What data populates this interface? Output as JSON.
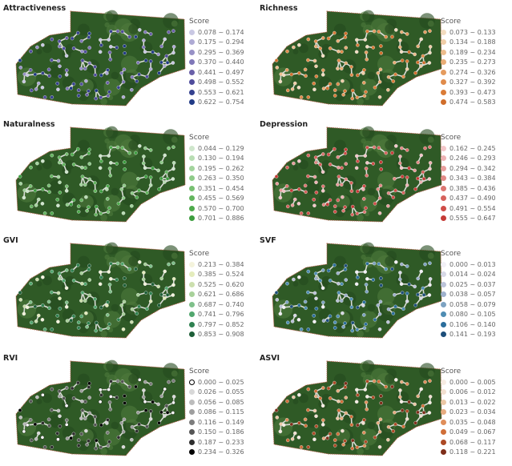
{
  "legend_header": "Score",
  "panels": [
    {
      "title": "Attractiveness",
      "classes": [
        "0.078 ~ 0.174",
        "0.175 ~ 0.294",
        "0.295 ~ 0.369",
        "0.370 ~ 0.440",
        "0.441 ~ 0.497",
        "0.498 ~ 0.552",
        "0.553 ~ 0.621",
        "0.622 ~ 0.754"
      ],
      "colors": [
        "#c9c8e3",
        "#aeaad4",
        "#9791c6",
        "#7f77b8",
        "#6a60a9",
        "#4f4c9c",
        "#35418f",
        "#203a86"
      ]
    },
    {
      "title": "Richness",
      "classes": [
        "0.073 ~ 0.133",
        "0.134 ~ 0.188",
        "0.189 ~ 0.234",
        "0.235 ~ 0.273",
        "0.274 ~ 0.326",
        "0.327 ~ 0.392",
        "0.393 ~ 0.473",
        "0.474 ~ 0.583"
      ],
      "colors": [
        "#f3dcc0",
        "#f0cda7",
        "#edbd8d",
        "#e9ad76",
        "#e59c5f",
        "#e08c4b",
        "#da7c38",
        "#d06e2b"
      ]
    },
    {
      "title": "Naturalness",
      "classes": [
        "0.044 ~ 0.129",
        "0.130 ~ 0.194",
        "0.195 ~ 0.262",
        "0.263 ~ 0.350",
        "0.351 ~ 0.454",
        "0.455 ~ 0.569",
        "0.570 ~ 0.700",
        "0.701 ~ 0.886"
      ],
      "colors": [
        "#cfe6cc",
        "#b8ddb3",
        "#a3d49d",
        "#8ecb88",
        "#78c072",
        "#63b55e",
        "#4eaa4c",
        "#3c9d3e"
      ]
    },
    {
      "title": "Depression",
      "classes": [
        "0.162 ~ 0.245",
        "0.246 ~ 0.293",
        "0.294 ~ 0.342",
        "0.343 ~ 0.384",
        "0.385 ~ 0.436",
        "0.437 ~ 0.490",
        "0.491 ~ 0.554",
        "0.555 ~ 0.647"
      ],
      "colors": [
        "#f3c6c8",
        "#eeb2b3",
        "#e99e9c",
        "#e38a86",
        "#dd7671",
        "#d6625c",
        "#cf4d48",
        "#c53a36"
      ]
    },
    {
      "title": "GVI",
      "classes": [
        "0.213 ~ 0.384",
        "0.385 ~ 0.524",
        "0.525 ~ 0.620",
        "0.621 ~ 0.686",
        "0.687 ~ 0.740",
        "0.741 ~ 0.796",
        "0.797 ~ 0.852",
        "0.853 ~ 0.908"
      ],
      "colors": [
        "#f4f3dc",
        "#e4ecbc",
        "#ccdfae",
        "#a8d19a",
        "#7fc08a",
        "#52a76e",
        "#2f8150",
        "#1d5e37"
      ]
    },
    {
      "title": "SVF",
      "classes": [
        "0.000 ~ 0.013",
        "0.014 ~ 0.024",
        "0.025 ~ 0.037",
        "0.038 ~ 0.057",
        "0.058 ~ 0.079",
        "0.080 ~ 0.105",
        "0.106 ~ 0.140",
        "0.141 ~ 0.193"
      ],
      "colors": [
        "#f2f0f6",
        "#d7d8e6",
        "#bcc3d9",
        "#9fb1cd",
        "#7ea3c2",
        "#4f8db3",
        "#2b6e9c",
        "#1d4e7a"
      ]
    },
    {
      "title": "RVI",
      "classes": [
        "0.000 ~ 0.025",
        "0.026 ~ 0.055",
        "0.056 ~ 0.085",
        "0.086 ~ 0.115",
        "0.116 ~ 0.149",
        "0.150 ~ 0.186",
        "0.187 ~ 0.233",
        "0.234 ~ 0.326"
      ],
      "colors": [
        "#ffffff",
        "#d8d8d8",
        "#bcbcbc",
        "#9e9e9e",
        "#7c7c7c",
        "#555555",
        "#2e2e2e",
        "#000000"
      ]
    },
    {
      "title": "ASVI",
      "classes": [
        "0.000 ~ 0.005",
        "0.006 ~ 0.012",
        "0.013 ~ 0.022",
        "0.023 ~ 0.034",
        "0.035 ~ 0.048",
        "0.049 ~ 0.067",
        "0.068 ~ 0.117",
        "0.118 ~ 0.221"
      ],
      "colors": [
        "#f7ece3",
        "#f2dfd0",
        "#ecc8a6",
        "#e7ac80",
        "#e08e5a",
        "#d06e38",
        "#ad4a25",
        "#7e2e1a"
      ]
    }
  ]
}
